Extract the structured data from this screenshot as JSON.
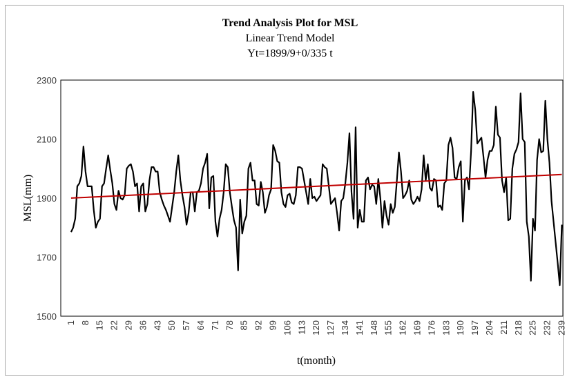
{
  "chart_data": {
    "type": "line",
    "title": "Trend Analysis Plot for MSL",
    "subtitle": "Linear Trend Model",
    "equation": "Yt=1899/9+0/335 t",
    "xlabel": "t(month)",
    "ylabel": "MSL(mm)",
    "color": "#000000",
    "x": [
      1,
      2,
      3,
      4,
      5,
      6,
      7,
      8,
      9,
      10,
      11,
      12,
      13,
      14,
      15,
      16,
      17,
      18,
      19,
      20,
      21,
      22,
      23,
      24,
      25,
      26,
      27,
      28,
      29,
      30,
      31,
      32,
      33,
      34,
      35,
      36,
      37,
      38,
      39,
      40,
      41,
      42,
      43,
      44,
      45,
      46,
      47,
      48,
      49,
      50,
      51,
      52,
      53,
      54,
      55,
      56,
      57,
      58,
      59,
      60,
      61,
      62,
      63,
      64,
      65,
      66,
      67,
      68,
      69,
      70,
      71,
      72,
      73,
      74,
      75,
      76,
      77,
      78,
      79,
      80,
      81,
      82,
      83,
      84,
      85,
      86,
      87,
      88,
      89,
      90,
      91,
      92,
      93,
      94,
      95,
      96,
      97,
      98,
      99,
      100,
      101,
      102,
      103,
      104,
      105,
      106,
      107,
      108,
      109,
      110,
      111,
      112,
      113,
      114,
      115,
      116,
      117,
      118,
      119,
      120,
      121,
      122,
      123,
      124,
      125,
      126,
      127,
      128,
      129,
      130,
      131,
      132,
      133,
      134,
      135,
      136,
      137,
      138,
      139,
      140,
      141,
      142,
      143,
      144,
      145,
      146,
      147,
      148,
      149,
      150,
      151,
      152,
      153,
      154,
      155,
      156,
      157,
      158,
      159,
      160,
      161,
      162,
      163,
      164,
      165,
      166,
      167,
      168,
      169,
      170,
      171,
      172,
      173,
      174,
      175,
      176,
      177,
      178,
      179,
      180,
      181,
      182,
      183,
      184,
      185,
      186,
      187,
      188,
      189,
      190,
      191,
      192,
      193,
      194,
      195,
      196,
      197,
      198,
      199,
      200,
      201,
      202,
      203,
      204,
      205,
      206,
      207,
      208,
      209,
      210,
      211,
      212,
      213,
      214,
      215,
      216,
      217,
      218,
      219,
      220,
      221,
      222,
      223,
      224,
      225,
      226,
      227,
      228,
      229,
      230,
      231,
      232,
      233,
      234,
      235,
      236,
      237,
      238,
      239
    ],
    "values": [
      1785,
      1800,
      1830,
      1940,
      1950,
      1975,
      2075,
      1990,
      1940,
      1940,
      1940,
      1860,
      1800,
      1820,
      1830,
      1940,
      1950,
      2000,
      2045,
      1995,
      1950,
      1880,
      1860,
      1925,
      1900,
      1895,
      1910,
      2000,
      2010,
      2015,
      1990,
      1940,
      1950,
      1855,
      1940,
      1950,
      1855,
      1880,
      1960,
      2005,
      2005,
      1990,
      1990,
      1920,
      1895,
      1875,
      1860,
      1840,
      1820,
      1870,
      1920,
      1990,
      2045,
      1960,
      1910,
      1870,
      1810,
      1850,
      1920,
      1920,
      1855,
      1920,
      1925,
      1950,
      2000,
      2020,
      2050,
      1865,
      1970,
      1975,
      1820,
      1770,
      1830,
      1860,
      1920,
      2015,
      2005,
      1920,
      1870,
      1825,
      1800,
      1655,
      1895,
      1780,
      1820,
      1840,
      2000,
      2020,
      1960,
      1960,
      1880,
      1875,
      1955,
      1920,
      1850,
      1870,
      1910,
      1930,
      2080,
      2060,
      2025,
      2020,
      1920,
      1880,
      1870,
      1910,
      1915,
      1885,
      1880,
      1910,
      2005,
      2005,
      2000,
      1960,
      1920,
      1880,
      1965,
      1900,
      1905,
      1890,
      1900,
      1910,
      2015,
      2005,
      2000,
      1940,
      1880,
      1890,
      1900,
      1850,
      1790,
      1890,
      1900,
      1950,
      2020,
      2120,
      1920,
      1830,
      2140,
      1800,
      1860,
      1820,
      1820,
      1960,
      1970,
      1930,
      1945,
      1940,
      1880,
      1965,
      1900,
      1800,
      1890,
      1840,
      1810,
      1880,
      1850,
      1870,
      1960,
      2055,
      1990,
      1900,
      1910,
      1925,
      1960,
      1895,
      1880,
      1890,
      1905,
      1890,
      1930,
      2045,
      1960,
      2015,
      1935,
      1925,
      1965,
      1960,
      1870,
      1875,
      1860,
      1950,
      1960,
      2080,
      2105,
      2070,
      1970,
      1965,
      2005,
      2025,
      1820,
      1960,
      1970,
      1930,
      2060,
      2260,
      2200,
      2085,
      2095,
      2105,
      2040,
      1970,
      2030,
      2060,
      2060,
      2080,
      2210,
      2115,
      2105,
      1960,
      1920,
      1970,
      1825,
      1830,
      2000,
      2050,
      2065,
      2090,
      2255,
      2100,
      2090,
      1820,
      1770,
      1620,
      1830,
      1790,
      2030,
      2100,
      2055,
      2060,
      2230,
      2100,
      2020,
      1890,
      1820,
      1750,
      1680,
      1605,
      1810
    ],
    "trend": {
      "x": [
        1,
        239
      ],
      "values": [
        1900.2,
        1980
      ],
      "color": "#c00000"
    },
    "xlim": [
      -4,
      239.5
    ],
    "xticks": [
      1,
      8,
      15,
      22,
      29,
      36,
      43,
      50,
      57,
      64,
      71,
      78,
      85,
      92,
      99,
      106,
      113,
      120,
      127,
      134,
      141,
      148,
      155,
      162,
      169,
      176,
      183,
      190,
      197,
      204,
      211,
      218,
      225,
      232,
      239
    ],
    "ylim": [
      1500,
      2300
    ],
    "yticks": [
      1500,
      1700,
      1900,
      2100,
      2300
    ],
    "grid": false
  }
}
